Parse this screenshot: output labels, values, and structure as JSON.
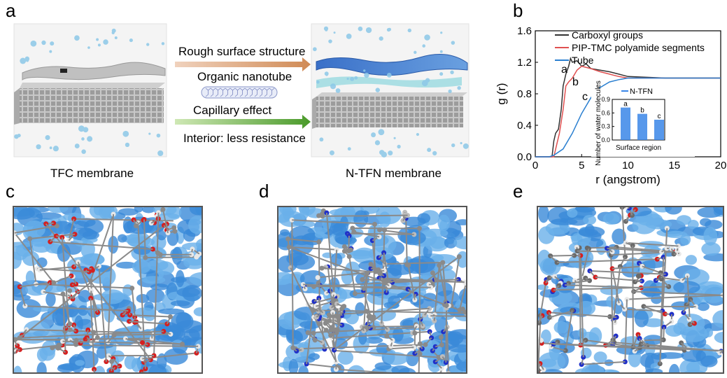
{
  "panels": {
    "a": "a",
    "b": "b",
    "c": "c",
    "d": "d",
    "e": "e"
  },
  "panel_a": {
    "left_caption": "TFC membrane",
    "right_caption": "N-TFN membrane",
    "arrow_top_label": "Rough surface structure",
    "middle_label": "Organic nanotube",
    "arrow_bottom_label": "Capillary effect",
    "bottom_label": "Interior: less resistance",
    "colors": {
      "top_arrow": "#d9a07a",
      "bottom_arrow": "#6aaa3a",
      "water": "#8cc8e8"
    }
  },
  "chart_data": [
    {
      "type": "line",
      "xlabel": "r (angstrom)",
      "ylabel": "g (r)",
      "xlim": [
        0,
        20
      ],
      "ylim": [
        0,
        1.6
      ],
      "x_ticks": [
        0,
        5,
        10,
        15,
        20
      ],
      "y_ticks": [
        0.0,
        0.4,
        0.8,
        1.2,
        1.6
      ],
      "legend_position": "top-left",
      "series": [
        {
          "name": "Carboxyl groups",
          "color": "#333333",
          "x": [
            0,
            1.8,
            2.0,
            2.2,
            2.5,
            2.8,
            3.0,
            3.3,
            3.6,
            3.8,
            4.0,
            4.5,
            5.0,
            5.5,
            6,
            7,
            8,
            9,
            10,
            12,
            14,
            16,
            18,
            20
          ],
          "y": [
            0,
            0,
            0.2,
            0.3,
            0.35,
            0.6,
            0.9,
            1.05,
            1.15,
            1.25,
            1.2,
            1.22,
            1.15,
            1.18,
            1.12,
            1.1,
            1.08,
            1.05,
            1.02,
            1.01,
            1.0,
            1.0,
            1.0,
            1.0
          ]
        },
        {
          "name": "PIP-TMC polyamide segments",
          "color": "#e05050",
          "x": [
            0,
            2.0,
            2.3,
            2.6,
            3.0,
            3.3,
            3.6,
            4.0,
            4.5,
            5.0,
            6,
            7,
            8,
            9,
            10,
            12,
            14,
            16,
            18,
            20
          ],
          "y": [
            0,
            0,
            0.15,
            0.3,
            0.6,
            0.9,
            0.95,
            1.0,
            1.1,
            1.15,
            1.12,
            1.08,
            1.05,
            1.02,
            1.0,
            1.0,
            1.0,
            1.0,
            1.0,
            1.0
          ]
        },
        {
          "name": "Tube",
          "color": "#2a7fd0",
          "x": [
            0,
            1.5,
            2,
            3,
            4,
            5,
            6,
            7,
            8,
            9,
            10,
            11,
            12,
            14,
            16,
            18,
            20
          ],
          "y": [
            0,
            0,
            0.02,
            0.1,
            0.3,
            0.55,
            0.75,
            0.88,
            0.95,
            0.98,
            1.0,
            1.0,
            1.0,
            1.0,
            1.0,
            1.0,
            1.0
          ]
        }
      ],
      "curve_labels": [
        "a",
        "b",
        "c"
      ]
    },
    {
      "type": "bar",
      "legend": "N-TFN",
      "xlabel": "Surface region",
      "ylabel": "Number of water molecules",
      "ylim": [
        0,
        0.9
      ],
      "y_ticks": [
        0.0,
        0.3,
        0.6,
        0.9
      ],
      "categories": [
        "a",
        "b",
        "c"
      ],
      "values": [
        0.72,
        0.58,
        0.45
      ],
      "color": "#3a86e8"
    }
  ]
}
